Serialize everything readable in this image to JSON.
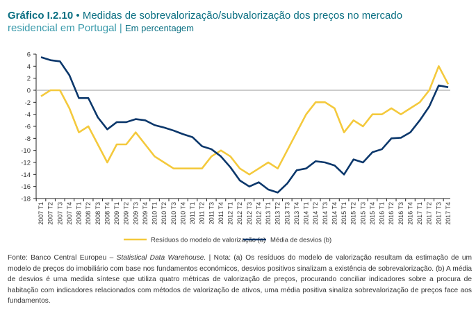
{
  "title": {
    "label": "Gráfico I.2.10",
    "bullet": "•",
    "text": "Medidas de sobrevalorização/subvalorização dos preços no mercado",
    "line2": "residencial em Portugal",
    "sep": "|",
    "unit": "Em percentagem"
  },
  "footnote": {
    "source_prefix": "Fonte: Banco Central Europeu – ",
    "source_italic": "Statistical Data Warehouse.",
    "rest": " | Nota: (a) Os resíduos do modelo de valorização resultam da estimação de um modelo de preços do imobiliário com base nos fundamentos económicos, desvios positivos sinalizam a existência de sobrevalorização. (b) A média de desvios é uma medida síntese que utiliza quatro métricas de valorização de preços, procurando conciliar indicadores sobre a procura de habitação com indicadores relacionados com métodos de valorização de ativos, uma média positiva sinaliza sobrevalorização de preços face aos fundamentos."
  },
  "chart_data": {
    "type": "line",
    "ylim": [
      -18,
      6
    ],
    "yticks": [
      6,
      4,
      2,
      0,
      -2,
      -4,
      -6,
      -8,
      -10,
      -12,
      -14,
      -16,
      -18
    ],
    "grid": false,
    "legend_placement": "bottom",
    "categories": [
      "2007 T1",
      "2007 T2",
      "2007 T3",
      "2007 T4",
      "2008 T1",
      "2008 T2",
      "2008 T3",
      "2008 T4",
      "2009 T1",
      "2009 T2",
      "2009 T3",
      "2009 T4",
      "2010 T1",
      "2010 T2",
      "2010 T3",
      "2010 T4",
      "2011 T1",
      "2011 T2",
      "2011 T3",
      "2011 T4",
      "2012 T1",
      "2012 T2",
      "2012 T3",
      "2012 T4",
      "2013 T1",
      "2013 T2",
      "2013 T3",
      "2013 T4",
      "2014 T1",
      "2014 T2",
      "2014 T3",
      "2014 T4",
      "2015 T1",
      "2015 T2",
      "2015 T3",
      "2015 T4",
      "2016 T1",
      "2016 T2",
      "2016 T3",
      "2016 T4",
      "2017 T1",
      "2017 T2",
      "2017 T3",
      "2017 T4"
    ],
    "series": [
      {
        "name": "Resíduos do modelo de valorização (a)",
        "color": "#f4c93c",
        "values": [
          -1,
          0,
          0,
          -3,
          -7,
          -6,
          -9,
          -12,
          -9,
          -9,
          -7,
          -9,
          -11,
          -12,
          -13,
          -13,
          -13,
          -13,
          -11,
          -10,
          -11,
          -13,
          -14,
          -13,
          -12,
          -13,
          -10,
          -7,
          -4,
          -2,
          -2,
          -3,
          -7,
          -5,
          -6,
          -4,
          -4,
          -3,
          -4,
          -3,
          -2,
          0,
          4,
          1
        ]
      },
      {
        "name": "Média de desvios (b)",
        "color": "#0b376b",
        "values": [
          5.5,
          5,
          4.8,
          2.5,
          -1.3,
          -1.3,
          -4.5,
          -6.5,
          -5.3,
          -5.3,
          -4.8,
          -5,
          -5.8,
          -6.2,
          -6.7,
          -7.3,
          -7.8,
          -9.3,
          -9.8,
          -11,
          -12.8,
          -15,
          -16,
          -15.3,
          -16.5,
          -17,
          -15.5,
          -13.3,
          -13,
          -11.8,
          -12,
          -12.5,
          -14,
          -11.5,
          -12,
          -10.3,
          -9.8,
          -8,
          -7.9,
          -7,
          -5,
          -2.7,
          0.8,
          0.5
        ]
      }
    ]
  }
}
